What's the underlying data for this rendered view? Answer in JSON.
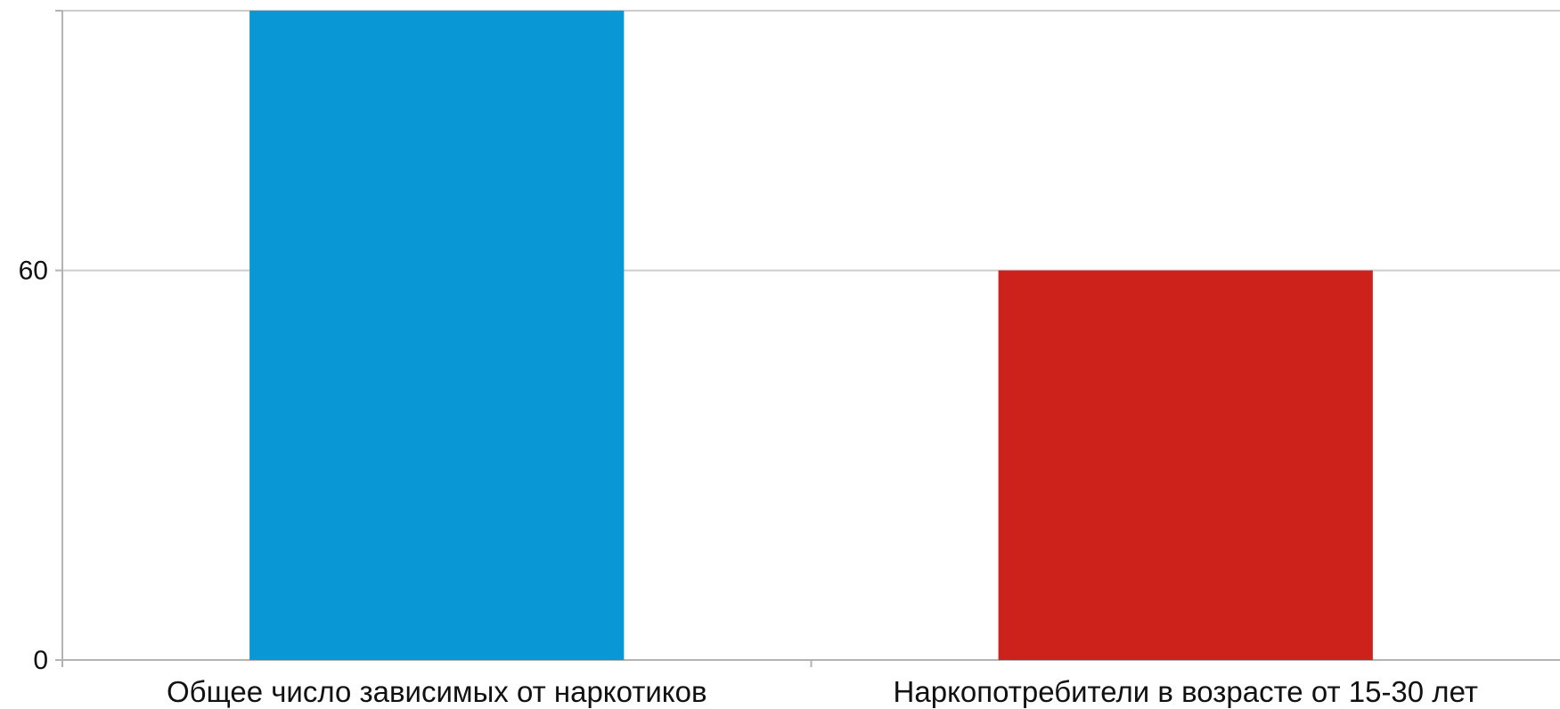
{
  "chart_data": {
    "type": "bar",
    "categories": [
      "Общее число зависимых от наркотиков",
      "Наркопотребители в возрасте от 15-30 лет"
    ],
    "values": [
      100,
      60
    ],
    "bar_colors": [
      "#0a97d5",
      "#cd221c"
    ],
    "ylim": [
      0,
      100
    ],
    "yticks": [
      0,
      60,
      100
    ],
    "ytick_labels": [
      "0",
      "60",
      ""
    ],
    "grid": true,
    "title": "",
    "xlabel": "",
    "ylabel": ""
  }
}
